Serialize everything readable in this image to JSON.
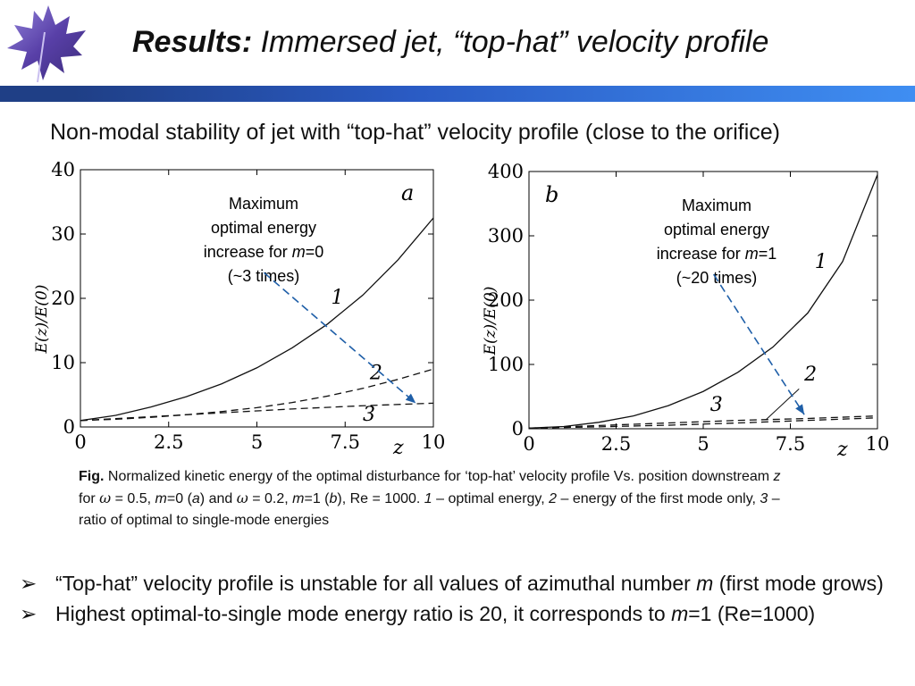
{
  "header": {
    "title_bold": "Results:",
    "title_italic": "Immersed jet, “top-hat” velocity profile"
  },
  "subtitle": "Non-modal stability of jet with “top-hat” velocity profile (close to the orifice)",
  "chart_data": [
    {
      "type": "line",
      "panel_label": "a",
      "xlabel": "z",
      "ylabel": "E(z)/E(0)",
      "xlim": [
        0,
        10
      ],
      "ylim": [
        0,
        40
      ],
      "xticks": [
        "0",
        "2.5",
        "5",
        "7.5",
        "10"
      ],
      "yticks": [
        "0",
        "10",
        "20",
        "30",
        "40"
      ],
      "grid": false,
      "series": [
        {
          "name": "1",
          "style": "solid",
          "x": [
            0,
            1,
            2,
            3,
            4,
            5,
            6,
            7,
            8,
            9,
            10
          ],
          "y": [
            1,
            1.8,
            3.1,
            4.7,
            6.7,
            9.2,
            12.3,
            16,
            20.5,
            26,
            32.5
          ]
        },
        {
          "name": "2",
          "style": "dashed",
          "x": [
            0,
            1,
            2,
            3,
            4,
            5,
            6,
            7,
            8,
            9,
            10
          ],
          "y": [
            1,
            1.2,
            1.5,
            1.9,
            2.4,
            3.0,
            3.8,
            4.8,
            6.0,
            7.4,
            9.0
          ]
        },
        {
          "name": "3",
          "style": "dashed",
          "x": [
            0,
            2,
            4,
            6,
            8,
            10
          ],
          "y": [
            1,
            1.6,
            2.2,
            2.8,
            3.3,
            3.7
          ]
        }
      ],
      "annotation": {
        "lines": [
          "Maximum",
          "optimal energy",
          "increase for ",
          "(~3 times)"
        ],
        "m_label": "m",
        "m_value": "=0",
        "arrow_from": [
          5.2,
          24
        ],
        "arrow_to": [
          9.5,
          3.7
        ]
      },
      "curve_labels": [
        {
          "text": "1",
          "x": 7.1,
          "y": 19.2
        },
        {
          "text": "2",
          "x": 8.2,
          "y": 7.4
        },
        {
          "text": "3",
          "x": 8.0,
          "y": 1.0
        }
      ]
    },
    {
      "type": "line",
      "panel_label": "b",
      "xlabel": "z",
      "ylabel": "E(z)/E(0)",
      "xlim": [
        0,
        10
      ],
      "ylim": [
        0,
        400
      ],
      "xticks": [
        "0",
        "2.5",
        "5",
        "7.5",
        "10"
      ],
      "yticks": [
        "0",
        "100",
        "200",
        "300",
        "400"
      ],
      "grid": false,
      "series": [
        {
          "name": "1",
          "style": "solid",
          "x": [
            0,
            1,
            2,
            3,
            4,
            5,
            6,
            7,
            8,
            9,
            10
          ],
          "y": [
            1,
            3.5,
            10,
            20,
            36,
            58,
            88,
            127,
            180,
            260,
            395
          ]
        },
        {
          "name": "2",
          "style": "dashed",
          "x": [
            0,
            2,
            4,
            6,
            8,
            10
          ],
          "y": [
            1,
            3,
            5.5,
            9,
            13,
            17
          ]
        },
        {
          "name": "3",
          "style": "dashed",
          "x": [
            0,
            2,
            4,
            6,
            8,
            10
          ],
          "y": [
            1,
            5,
            9,
            13,
            16,
            20
          ]
        }
      ],
      "annotation": {
        "lines": [
          "Maximum",
          "optimal energy",
          "increase for ",
          "(~20 times)"
        ],
        "m_label": "m",
        "m_value": "=1",
        "arrow_from": [
          5.3,
          240
        ],
        "arrow_to": [
          7.9,
          22
        ]
      },
      "curve_labels": [
        {
          "text": "1",
          "x": 8.2,
          "y": 250
        },
        {
          "text": "2",
          "x": 7.9,
          "y": 75
        },
        {
          "text": "3",
          "x": 5.2,
          "y": 28
        }
      ]
    }
  ],
  "caption": {
    "fig_label": "Fig.",
    "part1": " Normalized kinetic energy of the optimal disturbance for ‘top-hat’ velocity profile Vs. position downstream ",
    "z": "z",
    "part2": "for ",
    "omega": "ω",
    "part3": " = 0.5, ",
    "m": "m",
    "part4": "=0 (",
    "a": "a",
    "part5": ") and ",
    "part6": " = 0.2, ",
    "part7": "=1 (",
    "b": "b",
    "part8": "), Re = 1000. ",
    "n1": "1",
    "part9": " – optimal energy, ",
    "n2": "2",
    "part10": " – energy of the first mode only, ",
    "n3": "3",
    "part11": " –",
    "part12": "ratio of optimal to single-mode energies"
  },
  "bullets": [
    {
      "pre": "“Top-hat” velocity profile is unstable for all values of azimuthal number ",
      "em": "m",
      "post": " (first mode grows)"
    },
    {
      "pre": "Highest optimal-to-single mode energy ratio is 20, it corresponds to ",
      "em": "m",
      "post": "=1 (Re=1000)"
    }
  ],
  "bullet_symbol": "➢",
  "colors": {
    "accent_bar": "#2a5bc4",
    "arrow": "#1f5fa8",
    "logo": "#5a3fb0"
  }
}
